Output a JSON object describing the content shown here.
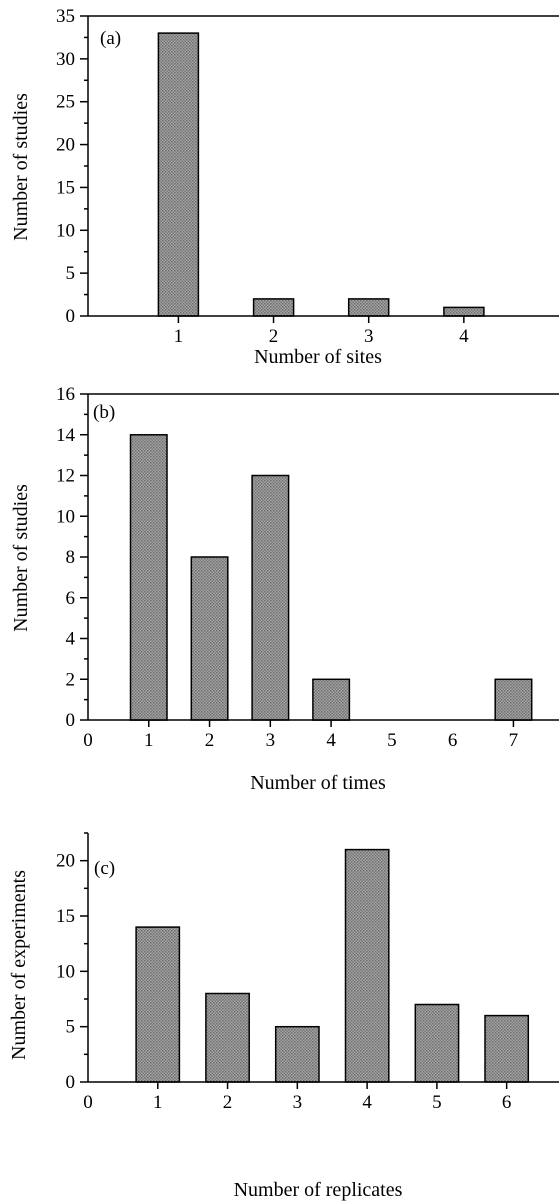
{
  "chart_data": [
    {
      "type": "bar",
      "panel_label": "(a)",
      "title": "",
      "xlabel": "Number of sites",
      "ylabel": "Number of studies",
      "categories": [
        "1",
        "2",
        "3",
        "4"
      ],
      "values": [
        33,
        2,
        2,
        1
      ],
      "xlim": [
        0.05,
        5
      ],
      "ylim": [
        0,
        35
      ],
      "yticks": [
        0,
        5,
        10,
        15,
        20,
        25,
        30,
        35
      ],
      "y_minor_step": 2.5,
      "xtick_labels": [
        {
          "x": 1,
          "label": "1"
        },
        {
          "x": 2,
          "label": "2"
        },
        {
          "x": 3,
          "label": "3"
        },
        {
          "x": 4,
          "label": "4"
        }
      ],
      "bar_width": 0.42,
      "grid": false,
      "bar_fill": "#8f8f8f"
    },
    {
      "type": "bar",
      "panel_label": "(b)",
      "title": "",
      "xlabel": "Number of times",
      "ylabel": "Number of studies",
      "categories": [
        "1",
        "2",
        "3",
        "4",
        "7"
      ],
      "values": [
        14,
        8,
        12,
        2,
        2
      ],
      "x": [
        1,
        2,
        3,
        4,
        7
      ],
      "xlim": [
        0,
        7.75
      ],
      "ylim": [
        0,
        16
      ],
      "yticks": [
        0,
        2,
        4,
        6,
        8,
        10,
        12,
        14,
        16
      ],
      "y_minor_step": 1,
      "xtick_labels": [
        {
          "x": 0,
          "label": "0"
        },
        {
          "x": 1,
          "label": "1"
        },
        {
          "x": 2,
          "label": "2"
        },
        {
          "x": 3,
          "label": "3"
        },
        {
          "x": 4,
          "label": "4"
        },
        {
          "x": 5,
          "label": "5"
        },
        {
          "x": 6,
          "label": "6"
        },
        {
          "x": 7,
          "label": "7"
        }
      ],
      "bar_width": 0.6,
      "grid": false,
      "bar_fill": "#8f8f8f"
    },
    {
      "type": "bar",
      "panel_label": "(c)",
      "title": "",
      "xlabel": "Number of replicates",
      "ylabel": "Number of experiments",
      "categories": [
        "1",
        "2",
        "3",
        "4",
        "5",
        "6"
      ],
      "values": [
        14,
        8,
        5,
        21,
        7,
        6
      ],
      "x": [
        1,
        2,
        3,
        4,
        5,
        6
      ],
      "xlim": [
        0,
        6.75
      ],
      "ylim": [
        0,
        22.5
      ],
      "yticks": [
        0,
        5,
        10,
        15,
        20
      ],
      "y_minor_step": 2.5,
      "xtick_labels": [
        {
          "x": 0,
          "label": "0"
        },
        {
          "x": 1,
          "label": "1"
        },
        {
          "x": 2,
          "label": "2"
        },
        {
          "x": 3,
          "label": "3"
        },
        {
          "x": 4,
          "label": "4"
        },
        {
          "x": 5,
          "label": "5"
        },
        {
          "x": 6,
          "label": "6"
        }
      ],
      "bar_width": 0.62,
      "grid": false,
      "bar_fill": "#8f8f8f"
    }
  ]
}
